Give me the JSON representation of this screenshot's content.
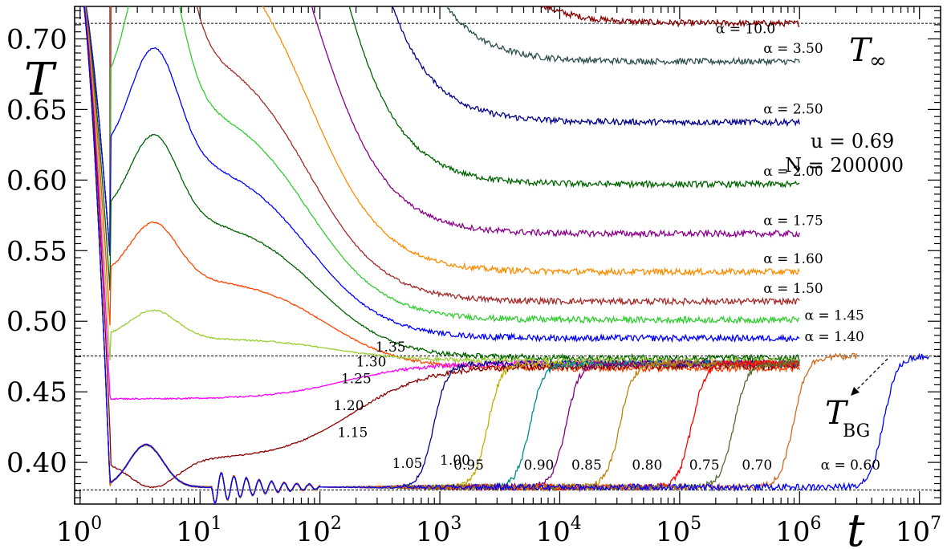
{
  "chart_data": {
    "type": "line",
    "xscale": "log",
    "xlim": [
      0.9,
      15000000
    ],
    "ylim": [
      0.3705,
      0.723
    ],
    "xlabel": "t",
    "ylabel": "T",
    "x_ticks": [
      {
        "value": 1,
        "base": "10",
        "exp": "0"
      },
      {
        "value": 10,
        "base": "10",
        "exp": "1"
      },
      {
        "value": 100,
        "base": "10",
        "exp": "2"
      },
      {
        "value": 1000,
        "base": "10",
        "exp": "3"
      },
      {
        "value": 10000,
        "base": "10",
        "exp": "4"
      },
      {
        "value": 100000,
        "base": "10",
        "exp": "5"
      },
      {
        "value": 1000000,
        "base": "10",
        "exp": "6"
      },
      {
        "value": 10000000,
        "base": "10",
        "exp": "7"
      }
    ],
    "y_ticks": [
      "0.40",
      "0.45",
      "0.50",
      "0.55",
      "0.60",
      "0.65",
      "0.70"
    ],
    "reference_lines": [
      {
        "name": "T_inf",
        "value": 0.711,
        "label_main": "T",
        "label_sub": "∞"
      },
      {
        "name": "T_BG",
        "value": 0.4755,
        "label_main": "T",
        "label_sub": "BG"
      },
      {
        "name": "T_min",
        "value": 0.3805
      }
    ],
    "parameters": {
      "u": "u = 0.69",
      "N": "N = 200000"
    },
    "series": [
      {
        "alpha": 10.0,
        "label": "α = 10.0",
        "color": "#8b0000",
        "T_final": 0.711,
        "tail_end": 1000000,
        "label_x": 200000,
        "label_y": 0.704
      },
      {
        "alpha": 3.5,
        "label": "α = 3.50",
        "color": "#2f4f4f",
        "T_final": 0.684,
        "tail_end": 1000000,
        "label_x": 500000,
        "label_y": 0.69
      },
      {
        "alpha": 2.5,
        "label": "α = 2.50",
        "color": "#00008b",
        "T_final": 0.641,
        "tail_end": 1000000,
        "label_x": 500000,
        "label_y": 0.647
      },
      {
        "alpha": 2.0,
        "label": "α = 2.00",
        "color": "#006400",
        "T_final": 0.597,
        "tail_end": 1000000,
        "label_x": 500000,
        "label_y": 0.603
      },
      {
        "alpha": 1.75,
        "label": "α = 1.75",
        "color": "#8b008b",
        "T_final": 0.562,
        "tail_end": 1000000,
        "label_x": 500000,
        "label_y": 0.568
      },
      {
        "alpha": 1.6,
        "label": "α = 1.60",
        "color": "#ff8c00",
        "T_final": 0.535,
        "tail_end": 1000000,
        "label_x": 500000,
        "label_y": 0.541
      },
      {
        "alpha": 1.5,
        "label": "α = 1.50",
        "color": "#a52a2a",
        "T_final": 0.514,
        "tail_end": 1000000,
        "label_x": 500000,
        "label_y": 0.52
      },
      {
        "alpha": 1.45,
        "label": "α = 1.45",
        "color": "#32cd32",
        "T_final": 0.501,
        "tail_end": 1000000,
        "label_x": 1100000,
        "label_y": 0.501
      },
      {
        "alpha": 1.4,
        "label": "α = 1.40",
        "color": "#0000ff",
        "T_final": 0.488,
        "tail_end": 1000000,
        "label_x": 1100000,
        "label_y": 0.486
      },
      {
        "alpha": 1.35,
        "label": "1.35",
        "color": "#006400",
        "T_final": 0.474,
        "tail_end": 1000000,
        "label_x": 290,
        "label_y": 0.4785
      },
      {
        "alpha": 1.3,
        "label": "1.30",
        "color": "#ff4500",
        "T_final": 0.4665,
        "tail_end": 1000000,
        "label_x": 200,
        "label_y": 0.468
      },
      {
        "alpha": 1.25,
        "label": "1.25",
        "color": "#9acd32",
        "T_final": 0.472,
        "tail_end": 1000000,
        "label_x": 150,
        "label_y": 0.456
      },
      {
        "alpha": 1.2,
        "label": "1.20",
        "color": "#ff00ff",
        "T_final": 0.47,
        "tail_end": 1000000,
        "label_x": 130,
        "label_y": 0.437
      },
      {
        "alpha": 1.15,
        "label": "1.15",
        "color": "#8b0000",
        "T_final": 0.468,
        "tail_end": 1000000,
        "label_x": 140,
        "label_y": 0.418
      },
      {
        "alpha": 1.05,
        "label": "1.05",
        "color": "#00008b",
        "T_final": 0.47,
        "tail_end": 1000000,
        "label_x": 400,
        "label_y": 0.396
      },
      {
        "alpha": 1.0,
        "label": "1.00",
        "color": "#bdb000",
        "T_final": 0.47,
        "tail_end": 1000000,
        "label_x": 1000,
        "label_y": 0.3985
      },
      {
        "alpha": 0.95,
        "label": "0.95",
        "color": "#008b8b",
        "T_final": 0.47,
        "tail_end": 1000000,
        "label_x": 1300,
        "label_y": 0.395
      },
      {
        "alpha": 0.9,
        "label": "0.90",
        "color": "#800080",
        "T_final": 0.47,
        "tail_end": 1000000,
        "label_x": 5000,
        "label_y": 0.395
      },
      {
        "alpha": 0.85,
        "label": "0.85",
        "color": "#b8860b",
        "T_final": 0.47,
        "tail_end": 1000000,
        "label_x": 12500,
        "label_y": 0.395
      },
      {
        "alpha": 0.8,
        "label": "0.80",
        "color": "#ff0000",
        "T_final": 0.47,
        "tail_end": 1000000,
        "label_x": 40000,
        "label_y": 0.395
      },
      {
        "alpha": 0.75,
        "label": "0.75",
        "color": "#556b2f",
        "T_final": 0.47,
        "tail_end": 1000000,
        "label_x": 120000,
        "label_y": 0.395
      },
      {
        "alpha": 0.7,
        "label": "0.70",
        "color": "#d2691e",
        "T_final": 0.475,
        "tail_end": 3000000,
        "label_x": 330000,
        "label_y": 0.395
      },
      {
        "alpha": 0.6,
        "label": "α = 0.60",
        "color": "#0000ff",
        "T_final": 0.475,
        "tail_end": 12000000,
        "label_x": 1500000,
        "label_y": 0.395
      }
    ]
  }
}
